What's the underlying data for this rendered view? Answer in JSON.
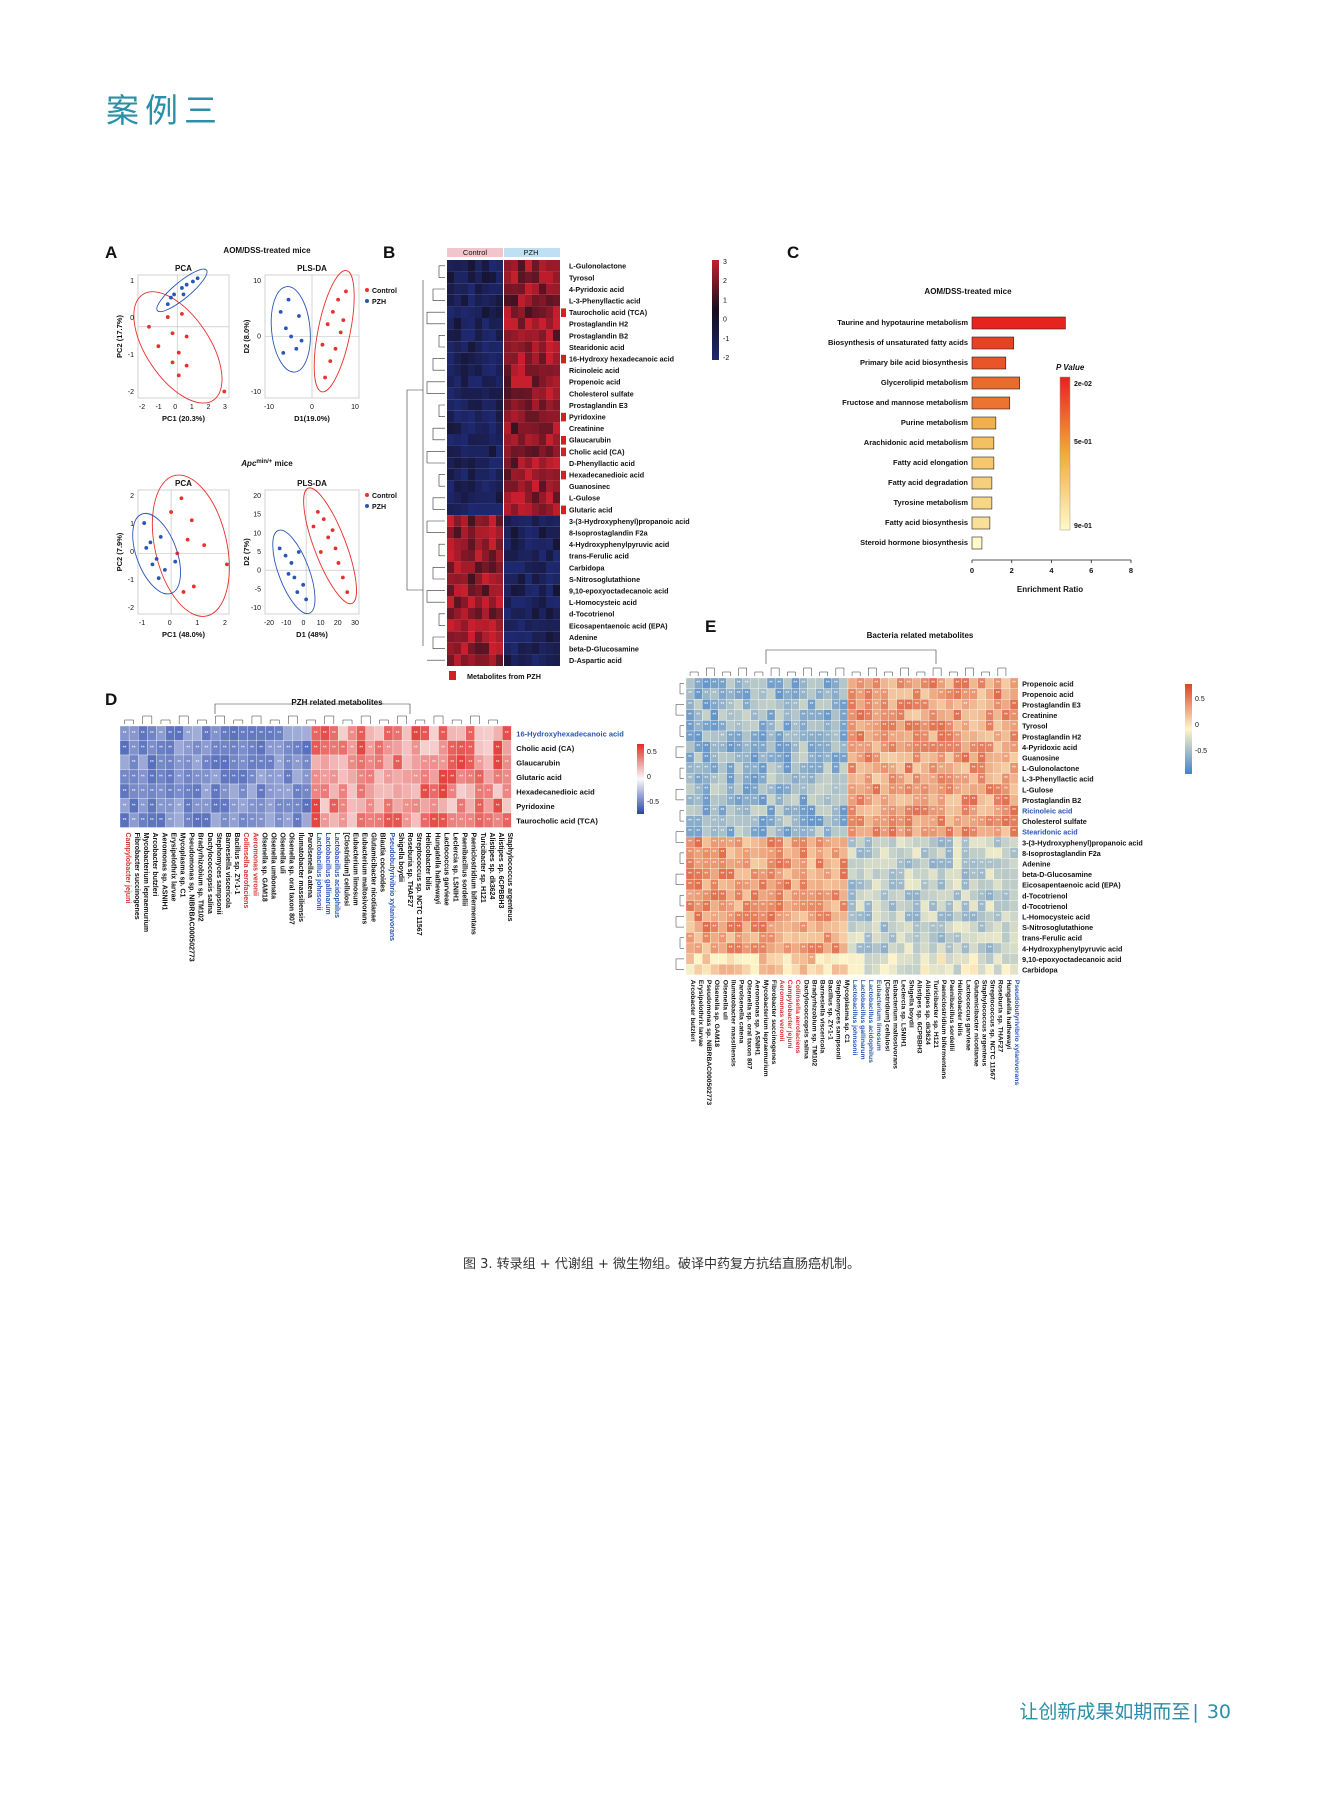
{
  "page": {
    "heading": "案例三",
    "caption": "图 3. 转录组 + 代谢组 + 微生物组。破译中药复方抗结直肠癌机制。",
    "footer_text": "让创新成果如期而至",
    "page_number": "30"
  },
  "colors": {
    "accent": "#2a8fa8",
    "control": "#e8302c",
    "pzh": "#2a55b8",
    "blue_label": "#2a55b8",
    "red_label": "#d9302c"
  },
  "panels": {
    "A": {
      "letter": "A",
      "group1_title": "AOM/DSS-treated mice",
      "group2_title_prefix": "Apc",
      "group2_title_sup": "min/+",
      "group2_title_suffix": " mice",
      "pca_title": "PCA",
      "plsda_title": "PLS-DA",
      "legend": [
        "Control",
        "PZH"
      ],
      "plots": [
        {
          "xlabel": "PC1 (20.3%)",
          "ylabel": "PC2 (17.7%)",
          "xticks": [
            "-2",
            "-1",
            "0",
            "1",
            "2",
            "3"
          ],
          "yticks": [
            "1",
            "0",
            "-1",
            "-2"
          ]
        },
        {
          "xlabel": "D1(19.0%)",
          "ylabel": "D2 (8.0%)",
          "xticks": [
            "-10",
            "0",
            "10"
          ],
          "yticks": [
            "10",
            "0",
            "-10"
          ]
        },
        {
          "xlabel": "PC1 (48.0%)",
          "ylabel": "PC2 (7.9%)",
          "xticks": [
            "-1",
            "0",
            "1",
            "2"
          ],
          "yticks": [
            "2",
            "1",
            "0",
            "-1",
            "-2"
          ]
        },
        {
          "xlabel": "D1 (48%)",
          "ylabel": "D2 (7%)",
          "xticks": [
            "-20",
            "-10",
            "0",
            "10",
            "20",
            "30"
          ],
          "yticks": [
            "20",
            "15",
            "10",
            "5",
            "0",
            "-5",
            "-10"
          ]
        }
      ]
    },
    "B": {
      "letter": "B",
      "group_labels": [
        "Control",
        "PZH"
      ],
      "scale_ticks": [
        "3",
        "2",
        "1",
        "0",
        "-1",
        "-2"
      ],
      "legend_label": "Metabolites from PZH",
      "rows": [
        "L-Gulonolactone",
        "Tyrosol",
        "4-Pyridoxic acid",
        "L-3-Phenyllactic acid",
        "Taurocholic acid (TCA)",
        "Prostaglandin H2",
        "Prostaglandin B2",
        "Stearidonic acid",
        "16-Hydroxy hexadecanoic acid",
        "Ricinoleic acid",
        "Propenoic acid",
        "Cholesterol sulfate",
        "Prostaglandin E3",
        "Pyridoxine",
        "Creatinine",
        "Glaucarubin",
        "Cholic acid (CA)",
        "D-Phenyllactic acid",
        "Hexadecanedioic acid",
        "Guanosinec",
        "L-Gulose",
        "Glutaric acid",
        "3-(3-Hydroxyphenyl)propanoic acid",
        "8-Isoprostaglandin F2a",
        "4-Hydroxyphenylpyruvic acid",
        "trans-Ferulic acid",
        "Carbidopa",
        "S-Nitrosoglutathione",
        "9,10-epoxyoctadecanoic acid",
        "L-Homocysteic acid",
        "d-Tocotrienol",
        "Eicosapentaenoic acid (EPA)",
        "Adenine",
        "beta-D-Glucosamine",
        "D-Aspartic acid"
      ],
      "marked_rows": [
        4,
        8,
        13,
        15,
        16,
        18,
        21
      ]
    },
    "C": {
      "letter": "C",
      "title": "AOM/DSS-treated mice",
      "xlabel": "Enrichment Ratio",
      "legend_title": "P Value",
      "legend_ticks": [
        "2e-02",
        "5e-01",
        "9e-01"
      ]
    },
    "D": {
      "letter": "D",
      "title": "PZH related metabolites",
      "rows": [
        "16-Hydroxyhexadecanoic acid",
        "Cholic acid (CA)",
        "Glaucarubin",
        "Glutaric acid",
        "Hexadecanedioic acid",
        "Pyridoxine",
        "Taurocholic acid (TCA)"
      ],
      "scale_ticks": [
        "0.5",
        "0",
        "-0.5"
      ],
      "columns": [
        "Campylobacter jejuni",
        "Fibrobacter succinogenes",
        "Mycobacterium lepraemurium",
        "Arcobacter butzleri",
        "Aeromonas sp. ASNIH1",
        "Erysipelothrix larvae",
        "Mycoplasma sp. C1",
        "Pseudomonas sp. NIBRBAC000502773",
        "Bradyrhizobium sp. TM102",
        "Dactylococcopsis salina",
        "Stephomyces sampsonii",
        "Barnesiella viscericola",
        "Bacillus sp. ZY-1-1",
        "Collinsella aerofaciens",
        "Aeromonas veronii",
        "Olsenella sp. GAM18",
        "Olsenella umbonata",
        "Olsenella uli",
        "Olsenella sp. oral taxon 807",
        "Ilumatobacter massiliensis",
        "Parolsenella catena",
        "Lactobacillus johnsonii",
        "Lactobacillus gallinarum",
        "Lactobacillus acidophilus",
        "[Clostridium] cellulosi",
        "Eubacterium limosum",
        "Eubacterium maltosivorans",
        "Glutamicibacter nicotianae",
        "Blautia coccoides",
        "Pseudobutyrivibrio xylanivorans",
        "Shigella boydii",
        "Roseburia sp. THAF27",
        "Streptococcus sp. NCTC 11567",
        "Helicobacter bilis",
        "Hungatella hathewayi",
        "Lactococcus garvieae",
        "Leclercia sp. LSNIH1",
        "Paenibacillus sordellii",
        "Paeniclostridium bifermentans",
        "Turicibacter sp. H121",
        "Alistipes sp. dk3624",
        "Alistipes sp. 6CPBBH3",
        "Staphylococcus argenteus"
      ],
      "red_columns": [
        0,
        13,
        14
      ],
      "blue_columns": [
        21,
        22,
        23,
        29
      ]
    },
    "E": {
      "letter": "E",
      "title": "Bacteria related metabolites",
      "scale_ticks": [
        "0.5",
        "0",
        "-0.5"
      ],
      "rows": [
        "Propenoic acid",
        "Propenoic acid",
        "Prostaglandin E3",
        "Creatinine",
        "Tyrosol",
        "Prostaglandin H2",
        "4-Pyridoxic acid",
        "Guanosine",
        "L-Gulonolactone",
        "L-3-Phenyllactic acid",
        "L-Gulose",
        "Prostaglandin B2",
        "Ricinoleic acid",
        "Cholesterol sulfate",
        "Stearidonic acid",
        "3-(3-Hydroxyphenyl)propanoic acid",
        "8-Isoprostaglandin F2a",
        "Adenine",
        "beta-D-Glucosamine",
        "Eicosapentaenoic acid (EPA)",
        "d-Tocotrienol",
        "d-Tocotrienol",
        "L-Homocysteic acid",
        "S-Nitrosoglutathione",
        "trans-Ferulic acid",
        "4-Hydroxyphenylpyruvic acid",
        "9,10-epoxyoctadecanoic acid",
        "Carbidopa"
      ],
      "blue_rows": [
        12,
        14
      ],
      "columns": [
        "Arcobacter butzleri",
        "Erysipelothrix larvae",
        "Pseudomonas sp. NIBRBAC000502773",
        "Olsenella sp. GAM18",
        "Olsenella uli",
        "Ilumatobacter massiliensis",
        "Parolsenella catena",
        "Olsenella sp. oral taxon 807",
        "Aeromonas sp. ASNIH1",
        "Mycobacterium lepraemurium",
        "Fibrobacter succinogenes",
        "Aeromonas veronii",
        "Campylobacter jejuni",
        "Collinsella aerofaciens",
        "Dactylococcopsis salina",
        "Bradyrhizobium sp. TM102",
        "Barnesiella viscericola",
        "Bacillus sp. ZY-1-1",
        "Stephomyces sampsonii",
        "Mycoplasma sp. C1",
        "Lactobacillus johnsonii",
        "Lactobacillus gallinarum",
        "Lactobacillus acidophilus",
        "Eubacterium limosum",
        "[Clostridium] cellulosi",
        "Eubacterium maltosivorans",
        "Leclercia sp. LSNIH1",
        "Shigella boydii",
        "Alistipes sp. 6CPBBH3",
        "Alistipes sp. dk3624",
        "Turicibacter sp. H121",
        "Paeniclostridium bifermentans",
        "Paenibacillus sordellii",
        "Helicobacter bilis",
        "Lactococcus garvieae",
        "Glutamicibacter nicotianae",
        "Staphylococcus argenteus",
        "Streptococcus sp. NCTC 11567",
        "Roseburia sp. THAF27",
        "Hungatella hathewayi",
        "Pseudobutyrivibrio xylanivorans"
      ],
      "red_columns": [
        11,
        12,
        13
      ],
      "blue_columns": [
        20,
        21,
        22,
        23,
        40
      ]
    }
  },
  "chart_data": [
    {
      "type": "scatter",
      "title": "PCA",
      "xlabel": "PC1 (20.3%)",
      "ylabel": "PC2 (17.7%)",
      "xlim": [
        -2.5,
        3.3
      ],
      "ylim": [
        -2.2,
        1.6
      ],
      "series": [
        {
          "name": "Control",
          "points": [
            [
              -1.8,
              0.0
            ],
            [
              -1.2,
              -0.6
            ],
            [
              -0.6,
              0.3
            ],
            [
              -0.3,
              -0.2
            ],
            [
              0.1,
              -0.8
            ],
            [
              0.3,
              0.4
            ],
            [
              0.6,
              -0.3
            ],
            [
              0.1,
              -1.5
            ],
            [
              0.6,
              -1.2
            ],
            [
              -0.3,
              -1.1
            ],
            [
              3.0,
              -2.0
            ]
          ]
        },
        {
          "name": "PZH",
          "points": [
            [
              -0.6,
              0.7
            ],
            [
              -0.2,
              1.0
            ],
            [
              0.3,
              1.2
            ],
            [
              0.6,
              1.3
            ],
            [
              1.0,
              1.4
            ],
            [
              1.3,
              1.5
            ],
            [
              0.4,
              1.0
            ],
            [
              -0.4,
              0.9
            ]
          ]
        }
      ]
    },
    {
      "type": "scatter",
      "title": "PLS-DA",
      "xlabel": "D1(19.0%)",
      "ylabel": "D2 (8.0%)",
      "xlim": [
        -18,
        18
      ],
      "ylim": [
        -15,
        15
      ],
      "series": [
        {
          "name": "Control",
          "points": [
            [
              4,
              -2
            ],
            [
              6,
              3
            ],
            [
              8,
              6
            ],
            [
              10,
              9
            ],
            [
              7,
              -6
            ],
            [
              9,
              -3
            ],
            [
              11,
              1
            ],
            [
              5,
              -10
            ],
            [
              12,
              4
            ],
            [
              13,
              11
            ]
          ]
        },
        {
          "name": "PZH",
          "points": [
            [
              -12,
              6
            ],
            [
              -10,
              2
            ],
            [
              -8,
              0
            ],
            [
              -6,
              -3
            ],
            [
              -5,
              5
            ],
            [
              -9,
              9
            ],
            [
              -4,
              -1
            ],
            [
              -11,
              -4
            ]
          ]
        }
      ]
    },
    {
      "type": "scatter",
      "title": "PCA",
      "xlabel": "PC1 (48.0%)",
      "ylabel": "PC2 (7.9%)",
      "xlim": [
        -1.6,
        2.8
      ],
      "ylim": [
        -2.2,
        2.3
      ],
      "series": [
        {
          "name": "Control",
          "points": [
            [
              0.0,
              1.5
            ],
            [
              0.5,
              2.0
            ],
            [
              1.0,
              1.2
            ],
            [
              0.8,
              0.5
            ],
            [
              1.6,
              0.3
            ],
            [
              0.3,
              0.0
            ],
            [
              1.1,
              -1.2
            ],
            [
              0.6,
              -1.4
            ],
            [
              2.7,
              -0.4
            ]
          ]
        },
        {
          "name": "PZH",
          "points": [
            [
              -1.3,
              1.1
            ],
            [
              -1.0,
              0.4
            ],
            [
              -0.7,
              -0.2
            ],
            [
              -0.5,
              0.6
            ],
            [
              -0.9,
              -0.4
            ],
            [
              -0.3,
              -0.6
            ],
            [
              -1.2,
              0.2
            ],
            [
              -0.6,
              -0.9
            ],
            [
              0.2,
              -0.3
            ]
          ]
        }
      ]
    },
    {
      "type": "scatter",
      "title": "PLS-DA",
      "xlabel": "D1 (48%)",
      "ylabel": "D2 (7%)",
      "xlim": [
        -28,
        36
      ],
      "ylim": [
        -12,
        22
      ],
      "series": [
        {
          "name": "Control",
          "points": [
            [
              5,
              12
            ],
            [
              8,
              16
            ],
            [
              12,
              14
            ],
            [
              15,
              9
            ],
            [
              18,
              11
            ],
            [
              10,
              5
            ],
            [
              20,
              6
            ],
            [
              22,
              2
            ],
            [
              25,
              -2
            ],
            [
              28,
              -6
            ]
          ]
        },
        {
          "name": "PZH",
          "points": [
            [
              -18,
              6
            ],
            [
              -14,
              4
            ],
            [
              -10,
              2
            ],
            [
              -8,
              -2
            ],
            [
              -5,
              5
            ],
            [
              -12,
              -1
            ],
            [
              -6,
              -6
            ],
            [
              -2,
              -4
            ],
            [
              0,
              -8
            ]
          ]
        }
      ]
    },
    {
      "type": "bar",
      "title": "AOM/DSS-treated mice",
      "xlabel": "Enrichment Ratio",
      "xlim": [
        0,
        8
      ],
      "categories": [
        "Taurine and hypotaurine metabolism",
        "Biosynthesis of unsaturated fatty acids",
        "Primary bile acid biosynthesis",
        "Glycerolipid metabolism",
        "Fructose and mannose metabolism",
        "Purine metabolism",
        "Arachidonic acid metabolism",
        "Fatty acid elongation",
        "Fatty acid degradation",
        "Tyrosine metabolism",
        "Fatty acid biosynthesis",
        "Steroid hormone biosynthesis"
      ],
      "values": [
        4.7,
        2.1,
        1.7,
        2.4,
        1.9,
        1.2,
        1.1,
        1.1,
        1.0,
        1.0,
        0.9,
        0.5
      ],
      "pvalues": [
        0.02,
        0.12,
        0.18,
        0.25,
        0.28,
        0.5,
        0.58,
        0.62,
        0.66,
        0.7,
        0.75,
        0.9
      ]
    },
    {
      "type": "heatmap",
      "title": "PZH related metabolites",
      "rows_ref": "panels.D.rows",
      "columns_ref": "panels.D.columns",
      "left_group_columns": 21,
      "left_group_value": -0.6,
      "right_group_value": 0.55
    },
    {
      "type": "heatmap",
      "title": "Bacteria related metabolites",
      "rows_ref": "panels.E.rows",
      "columns_ref": "panels.E.columns",
      "top_rows_group": 15,
      "left_columns_group": 20,
      "pattern": "top rows: blue on left columns, red on right columns; bottom rows: red on left columns, blue on right columns"
    }
  ]
}
